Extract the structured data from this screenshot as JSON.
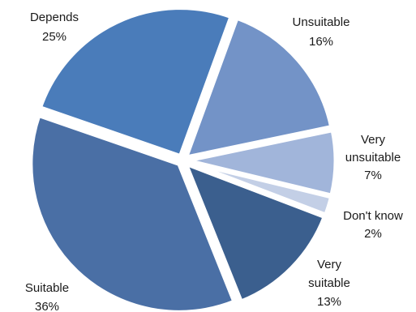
{
  "chart_data": {
    "type": "pie",
    "title": "",
    "start_angle_deg": 20,
    "direction": "clockwise",
    "legend": "none",
    "slices": [
      {
        "label": "Unsuitable",
        "value": 16,
        "display": "16%",
        "color": "#7393c7"
      },
      {
        "label": "Very unsuitable",
        "value": 7,
        "display": "7%",
        "color": "#a1b5da"
      },
      {
        "label": "Don't know",
        "value": 2,
        "display": "2%",
        "color": "#c3cfe6"
      },
      {
        "label": "Very suitable",
        "value": 13,
        "display": "13%",
        "color": "#3b5f8e"
      },
      {
        "label": "Suitable",
        "value": 36,
        "display": "36%",
        "color": "#4a6fa5"
      },
      {
        "label": "Depends",
        "value": 25,
        "display": "25%",
        "color": "#4a7cba"
      }
    ]
  }
}
